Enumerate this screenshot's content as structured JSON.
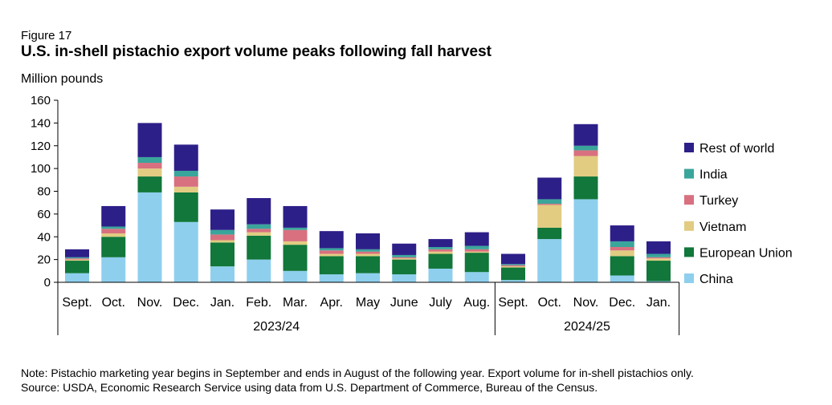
{
  "figure_label": "Figure 17",
  "title": "U.S. in-shell pistachio export volume peaks following fall harvest",
  "note": "Note: Pistachio marketing year begins in September and ends in August of the following year. Export volume for in-shell pistachios only.",
  "source": "Source: USDA, Economic Research Service using data from U.S. Department of Commerce, Bureau of the Census.",
  "chart_data": {
    "type": "bar",
    "stacked": true,
    "ylabel": "Million pounds",
    "ylim": [
      0,
      160
    ],
    "yticks": [
      0,
      20,
      40,
      60,
      80,
      100,
      120,
      140,
      160
    ],
    "grid": false,
    "legend_position": "right",
    "categories": [
      "Sept.",
      "Oct.",
      "Nov.",
      "Dec.",
      "Jan.",
      "Feb.",
      "Mar.",
      "Apr.",
      "May",
      "June",
      "July",
      "Aug.",
      "Sept.",
      "Oct.",
      "Nov.",
      "Dec.",
      "Jan."
    ],
    "groups": [
      {
        "label": "2023/24",
        "start": 0,
        "end": 11
      },
      {
        "label": "2024/25",
        "start": 12,
        "end": 16
      }
    ],
    "series": [
      {
        "name": "China",
        "color": "#8ecfee",
        "values": [
          8,
          22,
          79,
          53,
          14,
          20,
          10,
          7,
          8,
          7,
          12,
          9,
          2,
          38,
          73,
          6,
          1
        ]
      },
      {
        "name": "European Union",
        "color": "#11773a",
        "values": [
          11,
          18,
          14,
          26,
          21,
          21,
          23,
          16,
          15,
          13,
          13,
          17,
          11,
          10,
          20,
          17,
          18
        ]
      },
      {
        "name": "Vietnam",
        "color": "#e2cc82",
        "values": [
          1,
          3,
          7,
          5,
          2,
          3,
          3,
          2,
          2,
          1,
          2,
          1,
          1,
          20,
          18,
          5,
          2
        ]
      },
      {
        "name": "Turkey",
        "color": "#d8707f",
        "values": [
          1,
          4,
          5,
          9,
          5,
          3,
          10,
          3,
          2,
          1,
          2,
          2,
          1,
          1,
          5,
          3,
          1
        ]
      },
      {
        "name": "India",
        "color": "#3aa59b",
        "values": [
          1,
          2,
          5,
          5,
          4,
          4,
          2,
          2,
          2,
          2,
          2,
          3,
          1,
          4,
          4,
          5,
          3
        ]
      },
      {
        "name": "Rest of world",
        "color": "#2d1f88",
        "values": [
          7,
          18,
          30,
          23,
          18,
          23,
          19,
          15,
          14,
          10,
          7,
          12,
          9,
          19,
          19,
          14,
          11
        ]
      }
    ]
  }
}
